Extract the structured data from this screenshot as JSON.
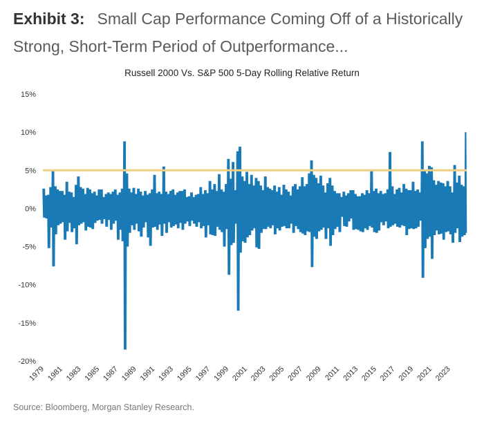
{
  "header": {
    "exhibit_label": "Exhibit 3:",
    "title_line1": "Small Cap Performance Coming Off of a Historically",
    "title_line2": "Strong, Short-Term Period of Outperformance..."
  },
  "source": "Source: Bloomberg, Morgan Stanley Research.",
  "chart_data": {
    "type": "line",
    "title": "Russell 2000 Vs. S&P 500 5-Day Rolling Relative Return",
    "xlabel": "",
    "ylabel": "",
    "y_unit": "%",
    "ylim": [
      -20,
      15
    ],
    "y_ticks": [
      "15%",
      "10%",
      "5%",
      "0%",
      "-5%",
      "-10%",
      "-15%",
      "-20%"
    ],
    "y_tick_values": [
      15,
      10,
      5,
      0,
      -5,
      -10,
      -15,
      -20
    ],
    "x_ticks": [
      "1979",
      "1981",
      "1983",
      "1985",
      "1987",
      "1989",
      "1991",
      "1993",
      "1995",
      "1997",
      "1999",
      "2001",
      "2003",
      "2005",
      "2007",
      "2009",
      "2011",
      "2013",
      "2015",
      "2017",
      "2019",
      "2021",
      "2023"
    ],
    "xlim": [
      1979,
      2024.9
    ],
    "grid": false,
    "legend": "none",
    "colors": {
      "series": "#1a7ab5",
      "threshold": "#f0cf83"
    },
    "threshold": 5,
    "note": "Quarterly high / low of 5-day relative return (%), approximate",
    "years": [
      1979,
      1980,
      1981,
      1982,
      1983,
      1984,
      1985,
      1986,
      1987,
      1988,
      1989,
      1990,
      1991,
      1992,
      1993,
      1994,
      1995,
      1996,
      1997,
      1998,
      1999,
      2000,
      2001,
      2002,
      2003,
      2004,
      2005,
      2006,
      2007,
      2008,
      2009,
      2010,
      2011,
      2012,
      2013,
      2014,
      2015,
      2016,
      2017,
      2018,
      2019,
      2020,
      2021,
      2022,
      2023,
      2024
    ],
    "quarterly_high": [
      [
        2.6,
        1.7,
        1.8,
        2.8
      ],
      [
        4.9,
        2.9,
        2.5,
        2.3
      ],
      [
        2.3,
        1.8,
        3.5,
        2.2
      ],
      [
        2.1,
        1.5,
        3.1,
        4.2
      ],
      [
        2.8,
        2.6,
        1.9,
        2.7
      ],
      [
        2.5,
        2.0,
        2.2,
        1.7
      ],
      [
        2.5,
        2.5,
        1.5,
        1.9
      ],
      [
        2.1,
        1.9,
        2.2,
        2.5
      ],
      [
        1.8,
        2.1,
        2.6,
        8.8
      ],
      [
        4.6,
        2.6,
        2.1,
        2.7
      ],
      [
        1.9,
        2.6,
        2.2,
        1.7
      ],
      [
        2.3,
        1.8,
        2.0,
        2.5
      ],
      [
        4.4,
        2.0,
        2.2,
        1.9
      ],
      [
        5.5,
        2.2,
        1.9,
        2.3
      ],
      [
        2.5,
        1.8,
        2.1,
        2.3
      ],
      [
        2.3,
        2.5,
        1.5,
        1.6
      ],
      [
        2.1,
        1.5,
        1.8,
        1.9
      ],
      [
        2.8,
        1.9,
        2.4,
        2.0
      ],
      [
        3.6,
        2.5,
        3.2,
        2.3
      ],
      [
        4.5,
        2.5,
        2.2,
        3.2
      ],
      [
        6.5,
        3.9,
        6.1,
        2.4
      ],
      [
        7.5,
        8.1,
        4.2,
        3.6
      ],
      [
        4.8,
        3.2,
        4.4,
        3.0
      ],
      [
        4.0,
        3.6,
        3.0,
        2.4
      ],
      [
        4.2,
        2.8,
        2.6,
        2.4
      ],
      [
        3.0,
        2.2,
        2.8,
        1.8
      ],
      [
        3.1,
        2.5,
        2.2,
        1.7
      ],
      [
        2.9,
        3.2,
        2.5,
        2.9
      ],
      [
        4.1,
        2.9,
        3.2,
        4.6
      ],
      [
        6.3,
        4.4,
        4.0,
        3.3
      ],
      [
        4.3,
        3.0,
        2.1,
        3.3
      ],
      [
        4.0,
        3.0,
        2.3,
        2.0
      ],
      [
        2.0,
        1.5,
        2.2,
        1.7
      ],
      [
        2.0,
        2.4,
        2.4,
        1.9
      ],
      [
        1.6,
        1.6,
        2.0,
        1.8
      ],
      [
        2.4,
        2.0,
        5.0,
        2.3
      ],
      [
        2.6,
        2.0,
        2.3,
        1.9
      ],
      [
        2.0,
        2.5,
        7.4,
        2.9
      ],
      [
        1.9,
        2.5,
        2.7,
        2.1
      ],
      [
        3.2,
        2.6,
        2.4,
        2.4
      ],
      [
        3.5,
        2.3,
        2.5,
        2.1
      ],
      [
        8.8,
        5.0,
        4.6,
        5.6
      ],
      [
        5.4,
        3.7,
        3.1,
        3.6
      ],
      [
        3.4,
        3.3,
        2.9,
        3.6
      ],
      [
        2.9,
        2.1,
        5.7,
        3.4
      ],
      [
        4.3,
        3.1,
        2.9,
        10.0
      ]
    ],
    "quarterly_low": [
      [
        -1.2,
        -1.3,
        -5.2,
        -2.5
      ],
      [
        -7.6,
        -3.4,
        -2.2,
        -2.0
      ],
      [
        -1.8,
        -4.1,
        -3.0,
        -1.9
      ],
      [
        -3.1,
        -2.6,
        -4.7,
        -2.2
      ],
      [
        -2.0,
        -1.8,
        -2.9,
        -2.4
      ],
      [
        -2.5,
        -2.7,
        -1.9,
        -1.6
      ],
      [
        -1.5,
        -2.0,
        -1.4,
        -2.4
      ],
      [
        -1.5,
        -2.8,
        -2.0,
        -1.6
      ],
      [
        -4.1,
        -2.8,
        -4.3,
        -18.5
      ],
      [
        -5.0,
        -3.2,
        -2.2,
        -2.8
      ],
      [
        -2.0,
        -3.0,
        -3.7,
        -2.5
      ],
      [
        -1.8,
        -3.8,
        -4.9,
        -2.5
      ],
      [
        -2.4,
        -2.8,
        -2.1,
        -3.6
      ],
      [
        -2.0,
        -3.2,
        -1.8,
        -2.5
      ],
      [
        -2.3,
        -2.1,
        -2.6,
        -1.9
      ],
      [
        -2.8,
        -2.0,
        -1.7,
        -2.3
      ],
      [
        -1.6,
        -2.0,
        -2.4,
        -1.8
      ],
      [
        -2.6,
        -2.3,
        -3.8,
        -2.2
      ],
      [
        -3.4,
        -3.5,
        -3.6,
        -2.4
      ],
      [
        -2.8,
        -3.1,
        -5.0,
        -2.7
      ],
      [
        -8.7,
        -4.8,
        -4.5,
        -2.0
      ],
      [
        -13.4,
        -5.8,
        -4.3,
        -4.5
      ],
      [
        -3.8,
        -3.5,
        -2.9,
        -2.6
      ],
      [
        -5.1,
        -5.3,
        -3.2,
        -2.7
      ],
      [
        -2.7,
        -2.4,
        -2.6,
        -2.2
      ],
      [
        -3.4,
        -2.6,
        -2.9,
        -2.4
      ],
      [
        -2.3,
        -2.6,
        -2.6,
        -2.0
      ],
      [
        -3.2,
        -2.3,
        -2.7,
        -3.1
      ],
      [
        -3.3,
        -3.5,
        -3.0,
        -3.1
      ],
      [
        -7.7,
        -3.7,
        -4.0,
        -3.0
      ],
      [
        -2.8,
        -2.5,
        -4.0,
        -2.6
      ],
      [
        -4.9,
        -3.5,
        -2.7,
        -2.4
      ],
      [
        -3.1,
        -1.1,
        -2.3,
        -2.4
      ],
      [
        -1.7,
        -1.3,
        -2.8,
        -2.7
      ],
      [
        -2.8,
        -3.0,
        -3.1,
        -2.6
      ],
      [
        -2.8,
        -2.3,
        -2.5,
        -3.1
      ],
      [
        -3.2,
        -2.9,
        -1.8,
        -2.2
      ],
      [
        -1.7,
        -2.6,
        -2.4,
        -2.2
      ],
      [
        -2.0,
        -2.4,
        -2.5,
        -2.2
      ],
      [
        -2.3,
        -3.5,
        -2.7,
        -2.6
      ],
      [
        -2.7,
        -2.6,
        -2.4,
        -1.6
      ],
      [
        -9.1,
        -5.2,
        -4.0,
        -3.7
      ],
      [
        -6.6,
        -3.5,
        -2.9,
        -3.4
      ],
      [
        -3.3,
        -4.1,
        -3.1,
        -3.0
      ],
      [
        -3.4,
        -4.5,
        -3.2,
        -2.6
      ],
      [
        -4.4,
        -3.7,
        -3.5,
        -3.2
      ]
    ]
  }
}
